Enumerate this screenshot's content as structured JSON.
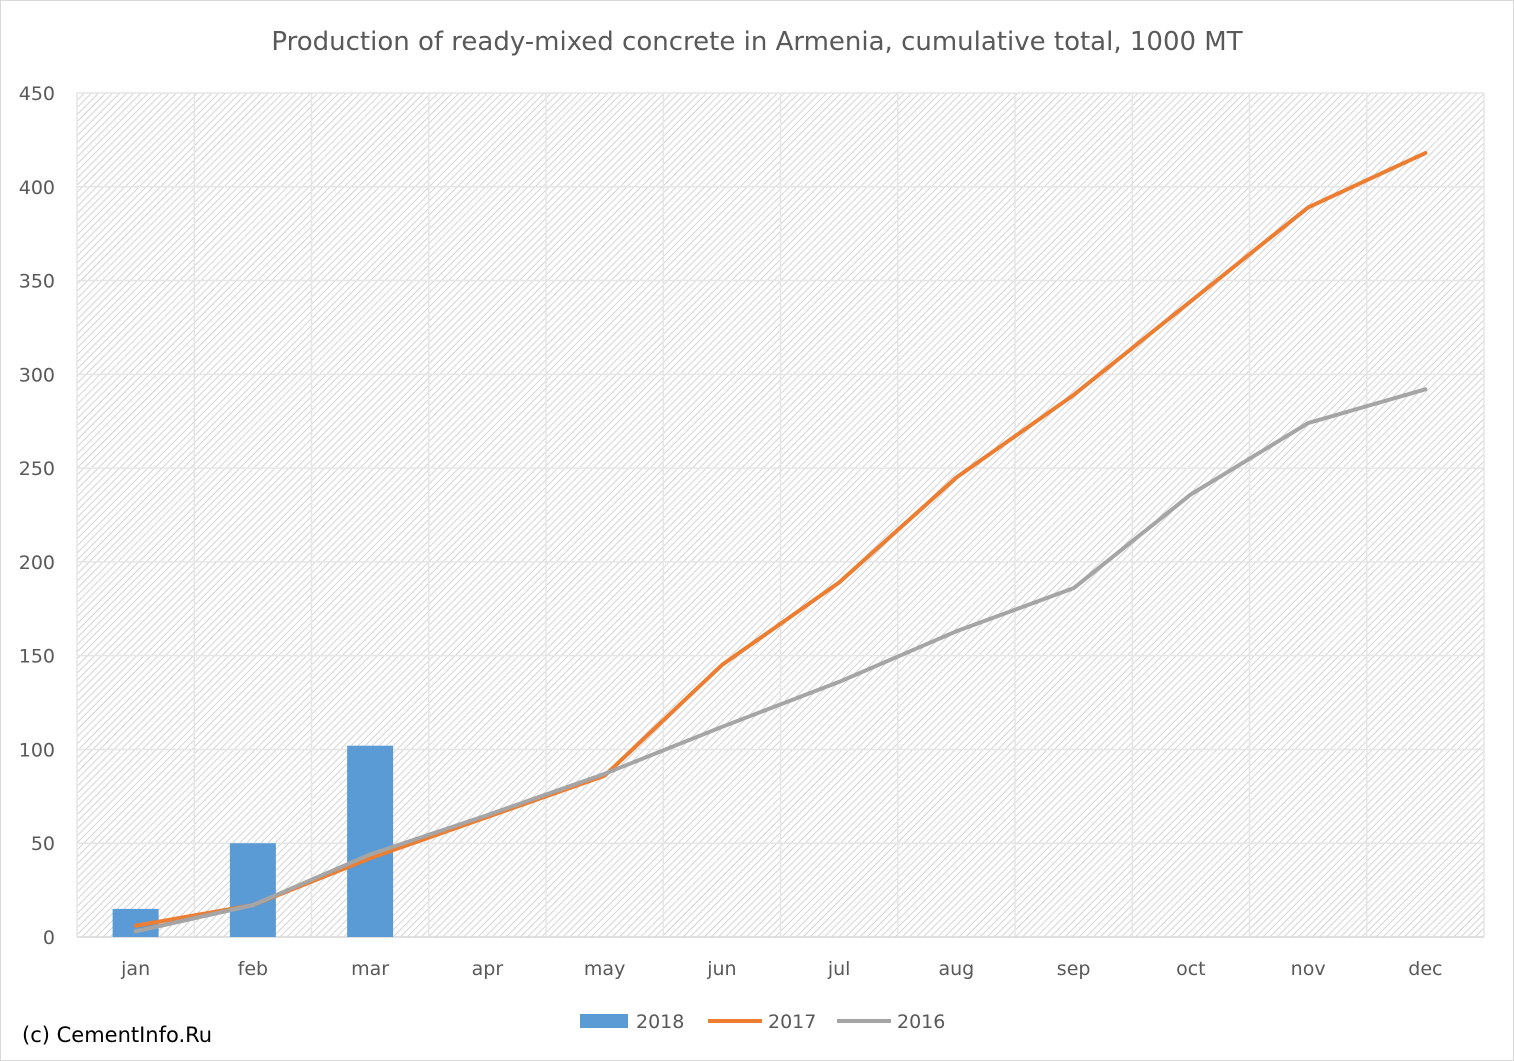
{
  "chart_data": {
    "type": "bar",
    "title": "Production of ready-mixed concrete in Armenia, cumulative total, 1000 MT",
    "xlabel": "",
    "ylabel": "",
    "categories": [
      "jan",
      "feb",
      "mar",
      "apr",
      "may",
      "jun",
      "jul",
      "aug",
      "sep",
      "oct",
      "nov",
      "dec"
    ],
    "ylim": [
      0,
      450
    ],
    "yticks": [
      "0",
      "50",
      "100",
      "150",
      "200",
      "250",
      "300",
      "350",
      "400",
      "450"
    ],
    "grid": true,
    "legend_position": "bottom",
    "series": [
      {
        "name": "2018",
        "type": "bar",
        "color": "#5b9bd5",
        "values": [
          15,
          50,
          102,
          null,
          null,
          null,
          null,
          null,
          null,
          null,
          null,
          null
        ]
      },
      {
        "name": "2017",
        "type": "line",
        "color": "#ed7d31",
        "values": [
          6,
          17,
          42,
          64,
          86,
          145,
          189,
          245,
          289,
          339,
          389,
          418
        ]
      },
      {
        "name": "2016",
        "type": "line",
        "color": "#a5a5a5",
        "values": [
          3,
          17,
          44,
          65,
          87,
          112,
          136,
          163,
          186,
          236,
          274,
          292
        ]
      }
    ]
  },
  "footer": {
    "copyright": "(c) CementInfo.Ru"
  }
}
